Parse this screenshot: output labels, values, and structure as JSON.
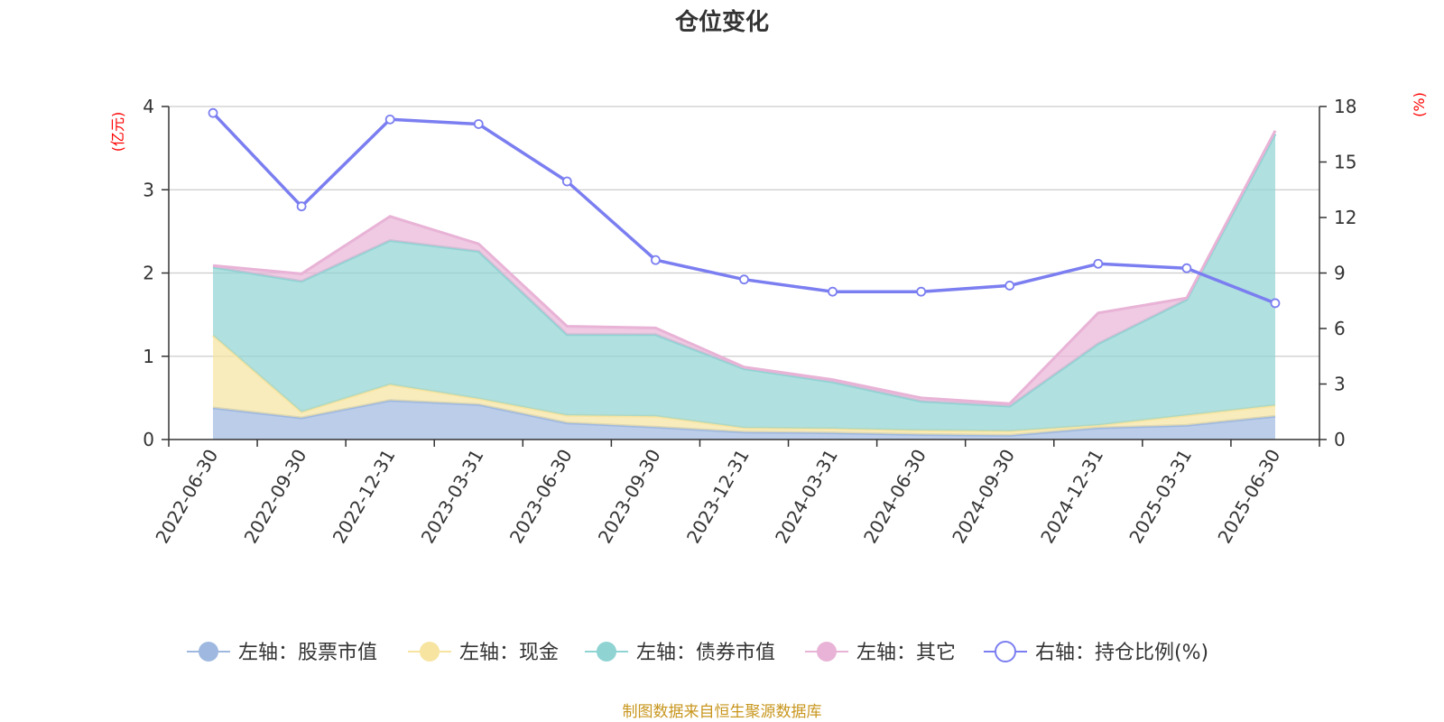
{
  "title": "仓位变化",
  "left_unit": "(亿元)",
  "right_unit": "(%)",
  "source": "制图数据来自恒生聚源数据库",
  "chart_data": {
    "type": "area",
    "categories": [
      "2022-06-30",
      "2022-09-30",
      "2022-12-31",
      "2023-03-31",
      "2023-06-30",
      "2023-09-30",
      "2023-12-31",
      "2024-03-31",
      "2024-06-30",
      "2024-09-30",
      "2024-12-31",
      "2025-03-31",
      "2025-06-30"
    ],
    "stacked": true,
    "left_axis": {
      "min": 0,
      "max": 4,
      "ticks": [
        "0",
        "1",
        "2",
        "3",
        "4"
      ]
    },
    "right_axis": {
      "min": 0,
      "max": 18,
      "ticks": [
        "0",
        "3",
        "6",
        "9",
        "12",
        "15",
        "18"
      ]
    },
    "series": [
      {
        "name": "左轴：股票市值",
        "axis": "left",
        "kind": "area",
        "color": "#9eb8e0",
        "values": [
          0.38,
          0.26,
          0.47,
          0.42,
          0.2,
          0.15,
          0.09,
          0.08,
          0.06,
          0.05,
          0.14,
          0.17,
          0.28
        ]
      },
      {
        "name": "左轴：现金",
        "axis": "left",
        "kind": "area",
        "color": "#f7e4a0",
        "values": [
          0.87,
          0.07,
          0.19,
          0.07,
          0.09,
          0.13,
          0.05,
          0.05,
          0.05,
          0.05,
          0.03,
          0.12,
          0.13
        ]
      },
      {
        "name": "左轴：债券市值",
        "axis": "left",
        "kind": "area",
        "color": "#8fd3d3",
        "values": [
          0.82,
          1.57,
          1.73,
          1.77,
          0.97,
          0.98,
          0.71,
          0.56,
          0.35,
          0.3,
          0.98,
          1.39,
          3.26
        ]
      },
      {
        "name": "左轴：其它",
        "axis": "left",
        "kind": "area",
        "color": "#e8b3d6",
        "values": [
          0.02,
          0.09,
          0.29,
          0.09,
          0.1,
          0.08,
          0.02,
          0.03,
          0.04,
          0.03,
          0.37,
          0.02,
          0.04
        ]
      },
      {
        "name": "右轴：持仓比例(%)",
        "axis": "right",
        "kind": "line",
        "color": "#7b7ef0",
        "values": [
          17.65,
          12.6,
          17.3,
          17.05,
          13.95,
          9.7,
          8.65,
          7.99,
          7.99,
          8.32,
          9.5,
          9.26,
          7.37
        ]
      }
    ]
  }
}
